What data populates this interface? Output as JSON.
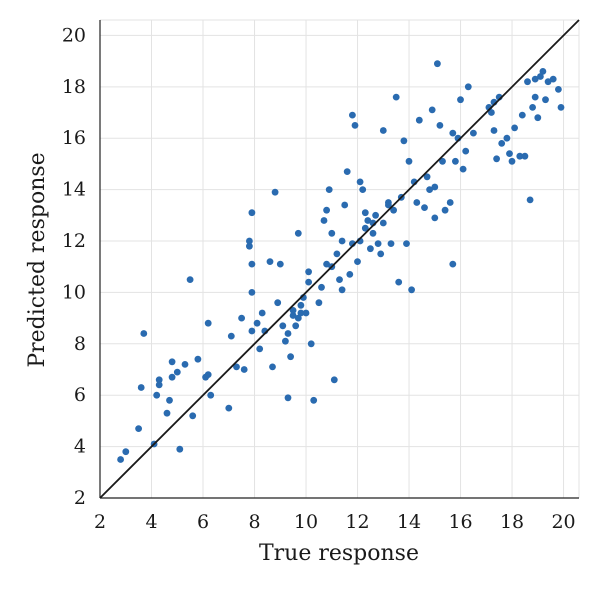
{
  "chart_data": {
    "type": "scatter",
    "title": "",
    "xlabel": "True response",
    "ylabel": "Predicted response",
    "xlim": [
      2,
      20.6
    ],
    "ylim": [
      2,
      20.6
    ],
    "xticks": [
      2,
      4,
      6,
      8,
      10,
      12,
      14,
      16,
      18,
      20
    ],
    "yticks": [
      2,
      4,
      6,
      8,
      10,
      12,
      14,
      16,
      18,
      20
    ],
    "grid": true,
    "reference_line": {
      "slope": 1,
      "intercept": 0,
      "color": "#1a1a1a"
    },
    "marker_color": "#2a6bb0",
    "points": [
      [
        2.8,
        3.5
      ],
      [
        3.0,
        3.8
      ],
      [
        3.5,
        4.7
      ],
      [
        3.6,
        6.3
      ],
      [
        3.7,
        8.4
      ],
      [
        4.1,
        4.1
      ],
      [
        4.2,
        6.0
      ],
      [
        4.3,
        6.6
      ],
      [
        4.3,
        6.4
      ],
      [
        4.6,
        5.3
      ],
      [
        4.7,
        5.8
      ],
      [
        4.8,
        7.3
      ],
      [
        4.8,
        6.7
      ],
      [
        5.0,
        6.9
      ],
      [
        5.1,
        3.9
      ],
      [
        5.3,
        7.2
      ],
      [
        5.5,
        10.5
      ],
      [
        5.6,
        5.2
      ],
      [
        5.8,
        7.4
      ],
      [
        6.1,
        6.7
      ],
      [
        6.2,
        6.8
      ],
      [
        6.2,
        8.8
      ],
      [
        6.3,
        6.0
      ],
      [
        7.0,
        5.5
      ],
      [
        7.1,
        8.3
      ],
      [
        7.3,
        7.1
      ],
      [
        7.5,
        9.0
      ],
      [
        7.6,
        7.0
      ],
      [
        7.9,
        8.5
      ],
      [
        7.9,
        10.0
      ],
      [
        7.9,
        11.1
      ],
      [
        7.8,
        11.8
      ],
      [
        7.8,
        12.0
      ],
      [
        7.9,
        13.1
      ],
      [
        8.1,
        8.8
      ],
      [
        8.2,
        7.8
      ],
      [
        8.3,
        9.2
      ],
      [
        8.4,
        8.5
      ],
      [
        8.6,
        11.2
      ],
      [
        8.7,
        7.1
      ],
      [
        8.8,
        13.9
      ],
      [
        8.9,
        9.6
      ],
      [
        9.0,
        11.1
      ],
      [
        9.1,
        8.7
      ],
      [
        9.2,
        8.1
      ],
      [
        9.3,
        8.4
      ],
      [
        9.3,
        5.9
      ],
      [
        9.4,
        7.5
      ],
      [
        9.5,
        9.1
      ],
      [
        9.6,
        8.7
      ],
      [
        9.7,
        9.0
      ],
      [
        9.7,
        12.3
      ],
      [
        9.8,
        9.2
      ],
      [
        9.8,
        9.5
      ],
      [
        9.9,
        9.8
      ],
      [
        10.0,
        9.2
      ],
      [
        10.1,
        10.4
      ],
      [
        10.2,
        8.0
      ],
      [
        10.3,
        5.8
      ],
      [
        10.5,
        9.6
      ],
      [
        10.6,
        10.2
      ],
      [
        10.7,
        12.8
      ],
      [
        10.8,
        11.1
      ],
      [
        10.8,
        13.2
      ],
      [
        10.9,
        14.0
      ],
      [
        11.0,
        11.0
      ],
      [
        11.0,
        12.3
      ],
      [
        11.1,
        6.6
      ],
      [
        11.2,
        11.5
      ],
      [
        11.3,
        10.5
      ],
      [
        11.4,
        12.0
      ],
      [
        11.4,
        10.1
      ],
      [
        11.5,
        13.4
      ],
      [
        11.6,
        14.7
      ],
      [
        11.7,
        10.7
      ],
      [
        11.8,
        11.9
      ],
      [
        11.8,
        16.9
      ],
      [
        11.9,
        16.5
      ],
      [
        12.0,
        11.2
      ],
      [
        12.1,
        12.0
      ],
      [
        12.1,
        14.3
      ],
      [
        12.2,
        14.0
      ],
      [
        12.3,
        12.5
      ],
      [
        12.4,
        12.8
      ],
      [
        12.5,
        11.7
      ],
      [
        12.6,
        12.3
      ],
      [
        12.6,
        12.7
      ],
      [
        12.7,
        13.0
      ],
      [
        12.8,
        11.9
      ],
      [
        12.9,
        11.5
      ],
      [
        13.0,
        12.7
      ],
      [
        13.0,
        16.3
      ],
      [
        13.2,
        13.5
      ],
      [
        13.2,
        13.4
      ],
      [
        13.3,
        11.9
      ],
      [
        13.4,
        13.2
      ],
      [
        13.5,
        17.6
      ],
      [
        13.6,
        10.4
      ],
      [
        13.7,
        13.7
      ],
      [
        13.8,
        15.9
      ],
      [
        13.9,
        11.9
      ],
      [
        14.0,
        15.1
      ],
      [
        14.1,
        10.1
      ],
      [
        14.2,
        14.3
      ],
      [
        14.3,
        13.5
      ],
      [
        14.4,
        16.7
      ],
      [
        14.6,
        13.3
      ],
      [
        14.7,
        14.5
      ],
      [
        14.8,
        14.0
      ],
      [
        14.9,
        17.1
      ],
      [
        15.0,
        12.9
      ],
      [
        15.0,
        14.1
      ],
      [
        15.1,
        18.9
      ],
      [
        15.2,
        16.5
      ],
      [
        15.3,
        15.1
      ],
      [
        15.4,
        13.2
      ],
      [
        15.6,
        13.5
      ],
      [
        15.7,
        16.2
      ],
      [
        15.7,
        11.1
      ],
      [
        15.8,
        15.1
      ],
      [
        15.9,
        16.0
      ],
      [
        16.0,
        17.5
      ],
      [
        16.1,
        14.8
      ],
      [
        16.2,
        15.5
      ],
      [
        16.3,
        18.0
      ],
      [
        16.5,
        16.2
      ],
      [
        17.1,
        17.2
      ],
      [
        17.3,
        16.3
      ],
      [
        17.3,
        17.4
      ],
      [
        17.4,
        15.2
      ],
      [
        17.5,
        17.6
      ],
      [
        17.6,
        15.8
      ],
      [
        17.8,
        16.0
      ],
      [
        17.9,
        15.4
      ],
      [
        18.0,
        15.1
      ],
      [
        18.1,
        16.4
      ],
      [
        18.3,
        15.3
      ],
      [
        18.4,
        16.9
      ],
      [
        18.5,
        15.3
      ],
      [
        18.6,
        18.2
      ],
      [
        18.7,
        13.6
      ],
      [
        18.8,
        17.2
      ],
      [
        18.9,
        18.3
      ],
      [
        18.9,
        17.6
      ],
      [
        19.0,
        16.8
      ],
      [
        19.1,
        18.4
      ],
      [
        19.2,
        18.6
      ],
      [
        19.3,
        17.5
      ],
      [
        19.4,
        18.2
      ],
      [
        19.6,
        18.3
      ],
      [
        19.8,
        17.9
      ],
      [
        19.9,
        17.2
      ],
      [
        17.2,
        17.0
      ],
      [
        12.3,
        13.1
      ],
      [
        10.1,
        10.8
      ],
      [
        9.5,
        9.3
      ]
    ]
  }
}
